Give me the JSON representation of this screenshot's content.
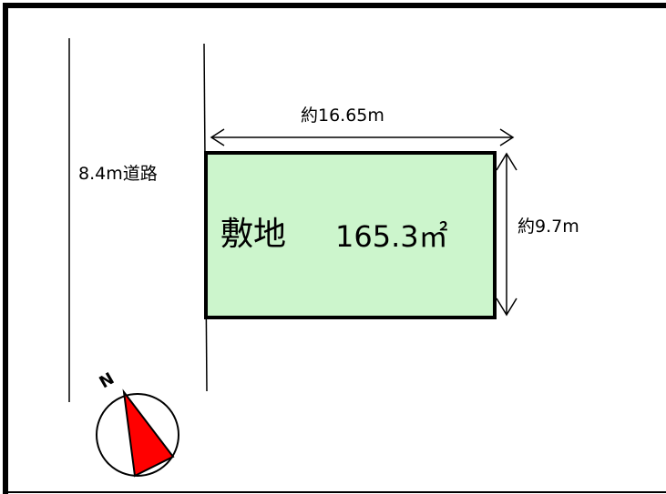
{
  "road": {
    "label": "8.4m道路"
  },
  "lot": {
    "name": "敷地",
    "area": "165.3㎡",
    "fill_color": "#ccf5cc"
  },
  "dimensions": {
    "width_label": "約16.65m",
    "depth_label": "約9.7m"
  },
  "compass": {
    "label": "N",
    "needle_color": "#ff0000",
    "icon": "north-arrow-icon"
  }
}
